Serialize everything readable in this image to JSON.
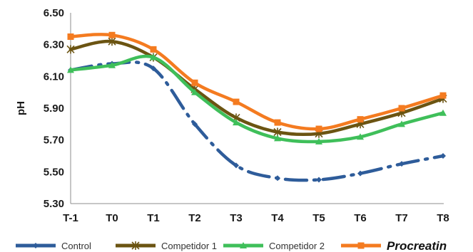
{
  "chart_data": {
    "type": "line",
    "categories": [
      "T-1",
      "T0",
      "T1",
      "T2",
      "T3",
      "T4",
      "T5",
      "T6",
      "T7",
      "T8"
    ],
    "ylabel": "pH",
    "xlabel": "",
    "ylim": [
      5.3,
      6.5
    ],
    "yticks": [
      "5.30",
      "5.50",
      "5.70",
      "5.90",
      "6.10",
      "6.30",
      "6.50"
    ],
    "grid": false,
    "legend": "bottom",
    "series": [
      {
        "name": "Control",
        "color": "#2e5c9a",
        "dash": true,
        "marker": "diamond",
        "values": [
          6.14,
          6.18,
          6.15,
          5.8,
          5.54,
          5.46,
          5.45,
          5.49,
          5.55,
          5.6
        ]
      },
      {
        "name": "Competidor 1",
        "color": "#6b5412",
        "dash": false,
        "marker": "star",
        "values": [
          6.27,
          6.32,
          6.22,
          6.02,
          5.84,
          5.75,
          5.74,
          5.8,
          5.87,
          5.96
        ]
      },
      {
        "name": "Competidor 2",
        "color": "#3fbf5a",
        "dash": false,
        "marker": "triangle",
        "values": [
          6.14,
          6.17,
          6.22,
          6.0,
          5.81,
          5.71,
          5.69,
          5.72,
          5.8,
          5.87
        ]
      },
      {
        "name": "Procreatin",
        "color": "#f47b20",
        "dash": false,
        "marker": "square",
        "values": [
          6.35,
          6.36,
          6.27,
          6.06,
          5.94,
          5.81,
          5.77,
          5.83,
          5.9,
          5.98
        ]
      }
    ]
  }
}
